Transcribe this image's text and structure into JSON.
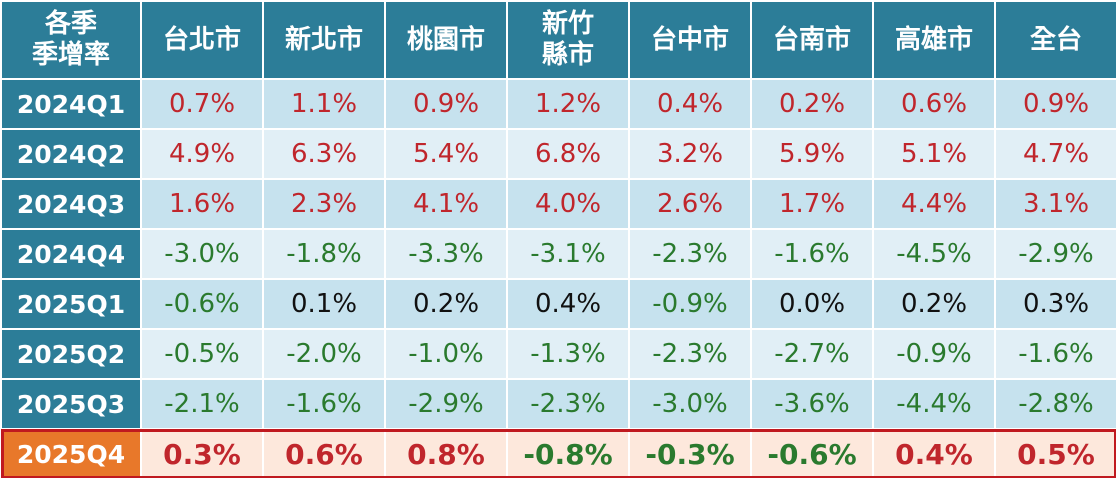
{
  "table": {
    "header": [
      [
        "各季",
        "季增率"
      ],
      [
        "台北市"
      ],
      [
        "新北市"
      ],
      [
        "桃園市"
      ],
      [
        "新竹",
        "縣市"
      ],
      [
        "台中市"
      ],
      [
        "台南市"
      ],
      [
        "高雄市"
      ],
      [
        "全台"
      ]
    ],
    "rows": [
      {
        "label": "2024Q1",
        "values": [
          "0.7%",
          "1.1%",
          "0.9%",
          "1.2%",
          "0.4%",
          "0.2%",
          "0.6%",
          "0.9%"
        ]
      },
      {
        "label": "2024Q2",
        "values": [
          "4.9%",
          "6.3%",
          "5.4%",
          "6.8%",
          "3.2%",
          "5.9%",
          "5.1%",
          "4.7%"
        ]
      },
      {
        "label": "2024Q3",
        "values": [
          "1.6%",
          "2.3%",
          "4.1%",
          "4.0%",
          "2.6%",
          "1.7%",
          "4.4%",
          "3.1%"
        ]
      },
      {
        "label": "2024Q4",
        "values": [
          "-3.0%",
          "-1.8%",
          "-3.3%",
          "-3.1%",
          "-2.3%",
          "-1.6%",
          "-4.5%",
          "-2.9%"
        ]
      },
      {
        "label": "2025Q1",
        "values": [
          "-0.6%",
          "0.1%",
          "0.2%",
          "0.4%",
          "-0.9%",
          "0.0%",
          "0.2%",
          "0.3%"
        ]
      },
      {
        "label": "2025Q2",
        "values": [
          "-0.5%",
          "-2.0%",
          "-1.0%",
          "-1.3%",
          "-2.3%",
          "-2.7%",
          "-0.9%",
          "-1.6%"
        ]
      },
      {
        "label": "2025Q3",
        "values": [
          "-2.1%",
          "-1.6%",
          "-2.9%",
          "-2.3%",
          "-3.0%",
          "-3.6%",
          "-4.4%",
          "-2.8%"
        ]
      },
      {
        "label": "2025Q4",
        "values": [
          "0.3%",
          "0.6%",
          "0.8%",
          "-0.8%",
          "-0.3%",
          "-0.6%",
          "0.4%",
          "0.5%"
        ]
      }
    ]
  }
}
